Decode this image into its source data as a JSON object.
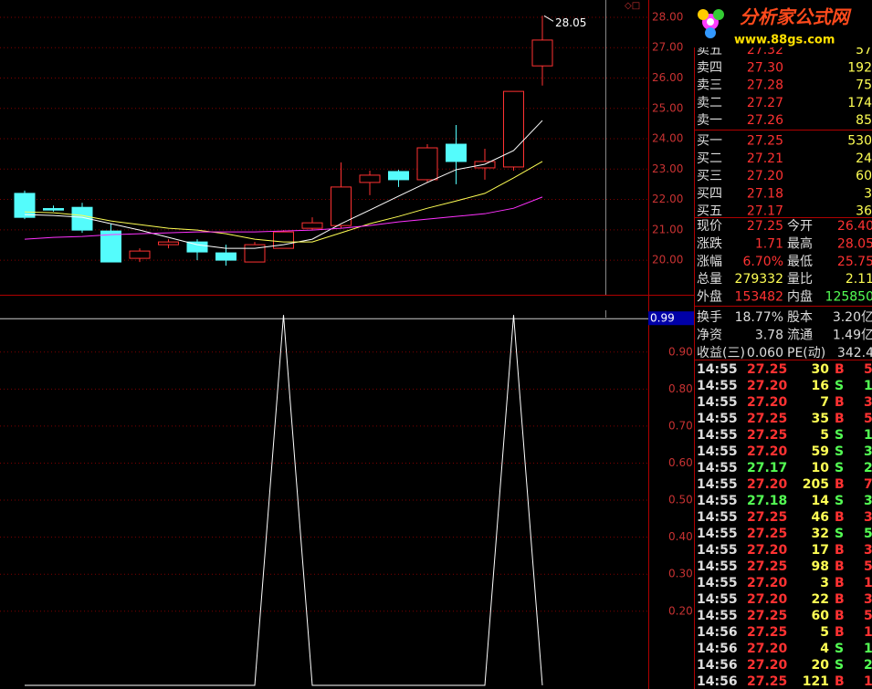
{
  "logo": {
    "title": "分析家公式网",
    "url": "www.88gs.com"
  },
  "price_chart": {
    "type": "candlestick",
    "ylim": [
      18.86,
      28.57
    ],
    "yticks": [
      {
        "value": 28,
        "label": "28.00"
      },
      {
        "value": 27,
        "label": "27.00"
      },
      {
        "value": 26,
        "label": "26.00"
      },
      {
        "value": 25,
        "label": "25.00"
      },
      {
        "value": 24,
        "label": "24.00"
      },
      {
        "value": 23,
        "label": "23.00"
      },
      {
        "value": 22,
        "label": "22.00"
      },
      {
        "value": 21,
        "label": "21.00"
      },
      {
        "value": 20,
        "label": "20.00"
      }
    ],
    "up_color": "#ff3232",
    "down_color": "#54fcfc",
    "candles": [
      {
        "open": 22.2,
        "high": 22.29,
        "low": 21.35,
        "close": 21.41
      },
      {
        "open": 21.7,
        "high": 21.8,
        "low": 21.6,
        "close": 21.65
      },
      {
        "open": 21.74,
        "high": 21.89,
        "low": 20.9,
        "close": 20.99
      },
      {
        "open": 20.96,
        "high": 21.2,
        "low": 19.94,
        "close": 19.94
      },
      {
        "open": 20.06,
        "high": 20.39,
        "low": 19.94,
        "close": 20.3
      },
      {
        "open": 20.51,
        "high": 20.69,
        "low": 20.39,
        "close": 20.6
      },
      {
        "open": 20.6,
        "high": 20.69,
        "low": 20.0,
        "close": 20.27
      },
      {
        "open": 20.24,
        "high": 20.51,
        "low": 19.82,
        "close": 20.0
      },
      {
        "open": 19.94,
        "high": 20.6,
        "low": 19.94,
        "close": 20.51
      },
      {
        "open": 20.39,
        "high": 20.99,
        "low": 20.39,
        "close": 20.93
      },
      {
        "open": 21.05,
        "high": 21.41,
        "low": 20.99,
        "close": 21.23
      },
      {
        "open": 21.14,
        "high": 23.22,
        "low": 21.05,
        "close": 22.41
      },
      {
        "open": 22.56,
        "high": 22.95,
        "low": 22.14,
        "close": 22.8
      },
      {
        "open": 22.92,
        "high": 22.98,
        "low": 22.41,
        "close": 22.65
      },
      {
        "open": 22.65,
        "high": 23.82,
        "low": 22.56,
        "close": 23.7
      },
      {
        "open": 23.82,
        "high": 24.45,
        "low": 22.5,
        "close": 23.25
      },
      {
        "open": 23.04,
        "high": 23.67,
        "low": 22.65,
        "close": 23.25
      },
      {
        "open": 23.07,
        "high": 25.56,
        "low": 22.95,
        "close": 25.56
      },
      {
        "open": 26.4,
        "high": 28.05,
        "low": 25.75,
        "close": 27.25
      }
    ],
    "moving_averages": [
      {
        "color": "#ffffff",
        "values": [
          21.5,
          21.47,
          21.41,
          21.2,
          20.99,
          20.75,
          20.51,
          20.39,
          20.39,
          20.51,
          20.69,
          21.2,
          21.65,
          22.11,
          22.56,
          22.98,
          23.16,
          23.61,
          24.6
        ]
      },
      {
        "color": "#ffff54",
        "values": [
          21.59,
          21.56,
          21.47,
          21.29,
          21.17,
          21.05,
          20.99,
          20.87,
          20.69,
          20.6,
          20.6,
          20.9,
          21.2,
          21.44,
          21.71,
          21.95,
          22.2,
          22.71,
          23.25
        ]
      },
      {
        "color": "#ff32ff",
        "values": [
          20.69,
          20.75,
          20.78,
          20.84,
          20.87,
          20.9,
          20.93,
          20.93,
          20.93,
          20.96,
          20.99,
          21.05,
          21.14,
          21.26,
          21.35,
          21.44,
          21.53,
          21.71,
          22.08
        ]
      }
    ]
  },
  "indicator": {
    "type": "line",
    "ylim": [
      -0.01,
      1.03
    ],
    "color": "#ffffff",
    "yticks": [
      {
        "value": 0.9,
        "label": "0.90"
      },
      {
        "value": 0.8,
        "label": "0.80"
      },
      {
        "value": 0.7,
        "label": "0.70"
      },
      {
        "value": 0.6,
        "label": "0.60"
      },
      {
        "value": 0.5,
        "label": "0.50"
      },
      {
        "value": 0.4,
        "label": "0.40"
      },
      {
        "value": 0.3,
        "label": "0.30"
      },
      {
        "value": 0.2,
        "label": "0.20"
      }
    ],
    "current": {
      "value": 0.99,
      "label": "0.99"
    },
    "values": [
      0,
      0,
      0,
      0,
      0,
      0,
      0,
      0,
      0,
      1,
      0,
      0,
      0,
      0,
      0,
      0,
      0,
      1,
      0
    ]
  },
  "order_book": [
    {
      "label": "卖五",
      "price": "27.32",
      "volume": "57"
    },
    {
      "label": "卖四",
      "price": "27.30",
      "volume": "192"
    },
    {
      "label": "卖三",
      "price": "27.28",
      "volume": "75"
    },
    {
      "label": "卖二",
      "price": "27.27",
      "volume": "174"
    },
    {
      "label": "卖一",
      "price": "27.26",
      "volume": "85"
    },
    {
      "label": "买一",
      "price": "27.25",
      "volume": "530"
    },
    {
      "label": "买二",
      "price": "27.21",
      "volume": "24"
    },
    {
      "label": "买三",
      "price": "27.20",
      "volume": "60"
    },
    {
      "label": "买四",
      "price": "27.18",
      "volume": "3"
    },
    {
      "label": "买五",
      "price": "27.17",
      "volume": "36"
    }
  ],
  "stats": [
    [
      "现价",
      "27.25",
      "今开",
      "26.40"
    ],
    [
      "涨跌",
      "1.71",
      "最高",
      "28.05"
    ],
    [
      "涨幅",
      "6.70%",
      "最低",
      "25.75"
    ],
    [
      "总量",
      "279332",
      "量比",
      "2.11"
    ],
    [
      "外盘",
      "153482",
      "内盘",
      "125850"
    ],
    [
      "换手",
      "18.77%",
      "股本",
      "3.20亿"
    ],
    [
      "净资",
      "3.78",
      "流通",
      "1.49亿"
    ],
    [
      "收益(三)",
      "0.060",
      "PE(动)",
      "342.4"
    ]
  ],
  "ticks": [
    [
      "14:55",
      "27.25",
      "30",
      "B",
      "5"
    ],
    [
      "14:55",
      "27.20",
      "16",
      "S",
      "1"
    ],
    [
      "14:55",
      "27.20",
      "7",
      "B",
      "3"
    ],
    [
      "14:55",
      "27.25",
      "35",
      "B",
      "5"
    ],
    [
      "14:55",
      "27.25",
      "5",
      "S",
      "1"
    ],
    [
      "14:55",
      "27.20",
      "59",
      "S",
      "3"
    ],
    [
      "14:55",
      "27.17",
      "10",
      "S",
      "2"
    ],
    [
      "14:55",
      "27.20",
      "205",
      "B",
      "7"
    ],
    [
      "14:55",
      "27.18",
      "14",
      "S",
      "3"
    ],
    [
      "14:55",
      "27.25",
      "46",
      "B",
      "3"
    ],
    [
      "14:55",
      "27.25",
      "32",
      "S",
      "5"
    ],
    [
      "14:55",
      "27.20",
      "17",
      "B",
      "3"
    ],
    [
      "14:55",
      "27.25",
      "98",
      "B",
      "5"
    ],
    [
      "14:55",
      "27.20",
      "3",
      "B",
      "1"
    ],
    [
      "14:55",
      "27.20",
      "22",
      "B",
      "3"
    ],
    [
      "14:55",
      "27.25",
      "60",
      "B",
      "5"
    ],
    [
      "14:56",
      "27.25",
      "5",
      "B",
      "1"
    ],
    [
      "14:56",
      "27.20",
      "4",
      "S",
      "1"
    ],
    [
      "14:56",
      "27.20",
      "20",
      "S",
      "2"
    ],
    [
      "14:56",
      "27.25",
      "121",
      "B",
      "1"
    ]
  ]
}
